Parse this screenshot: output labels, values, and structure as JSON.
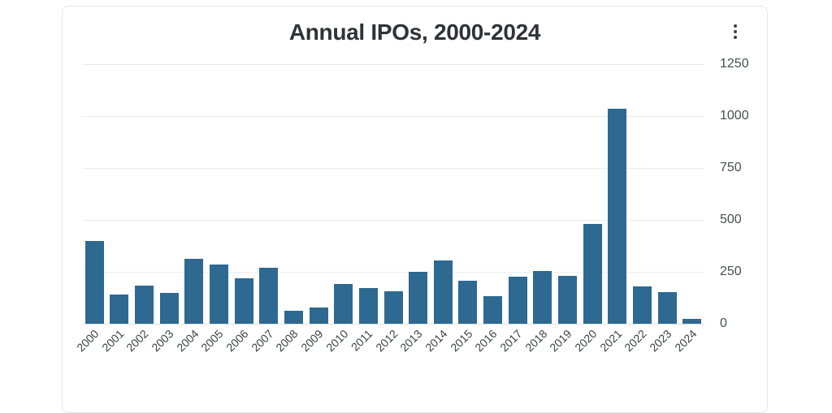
{
  "card": {
    "title": "Annual IPOs, 2000-2024",
    "menu_icon": "kebab-menu-icon"
  },
  "colors": {
    "bar": "#2d6991",
    "gridline": "#ececec",
    "axis_text": "#494d53",
    "title_text": "#2e3338",
    "card_border": "#e8e8ea"
  },
  "chart_data": {
    "type": "bar",
    "title": "Annual IPOs, 2000-2024",
    "xlabel": "",
    "ylabel": "",
    "categories": [
      "2000",
      "2001",
      "2002",
      "2003",
      "2004",
      "2005",
      "2006",
      "2007",
      "2008",
      "2009",
      "2010",
      "2011",
      "2012",
      "2013",
      "2014",
      "2015",
      "2016",
      "2017",
      "2018",
      "2019",
      "2020",
      "2021",
      "2022",
      "2023",
      "2024"
    ],
    "values": [
      397,
      141,
      183,
      148,
      314,
      286,
      220,
      268,
      62,
      79,
      190,
      171,
      157,
      251,
      304,
      206,
      133,
      225,
      255,
      232,
      480,
      1035,
      181,
      154,
      23
    ],
    "ylim": [
      0,
      1250
    ],
    "yticks": [
      0,
      250,
      500,
      750,
      1000,
      1250
    ],
    "y_axis_position": "right",
    "grid": "horizontal",
    "x_tick_rotation": -45,
    "legend": "none",
    "bar_color": "#2d6991"
  }
}
